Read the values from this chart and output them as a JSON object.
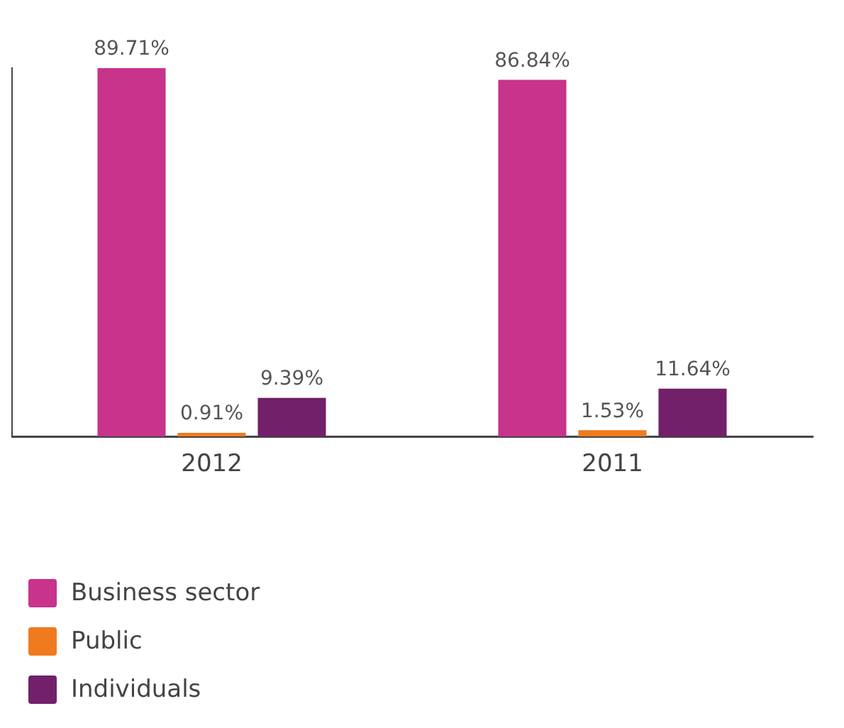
{
  "chart_data": {
    "type": "bar",
    "categories": [
      "2012",
      "2011"
    ],
    "series": [
      {
        "name": "Business sector",
        "color": "#c8338c",
        "values": [
          89.71,
          86.84
        ],
        "value_labels": [
          "89.71%",
          "86.84%"
        ]
      },
      {
        "name": "Public",
        "color": "#f07a1e",
        "values": [
          0.91,
          1.53
        ],
        "value_labels": [
          "0.91%",
          "1.53%"
        ]
      },
      {
        "name": "Individuals",
        "color": "#72206a",
        "values": [
          9.39,
          11.64
        ],
        "value_labels": [
          "9.39%",
          "11.64%"
        ]
      }
    ],
    "tick_labels": "x",
    "grid": false,
    "legend": "bottom left"
  }
}
